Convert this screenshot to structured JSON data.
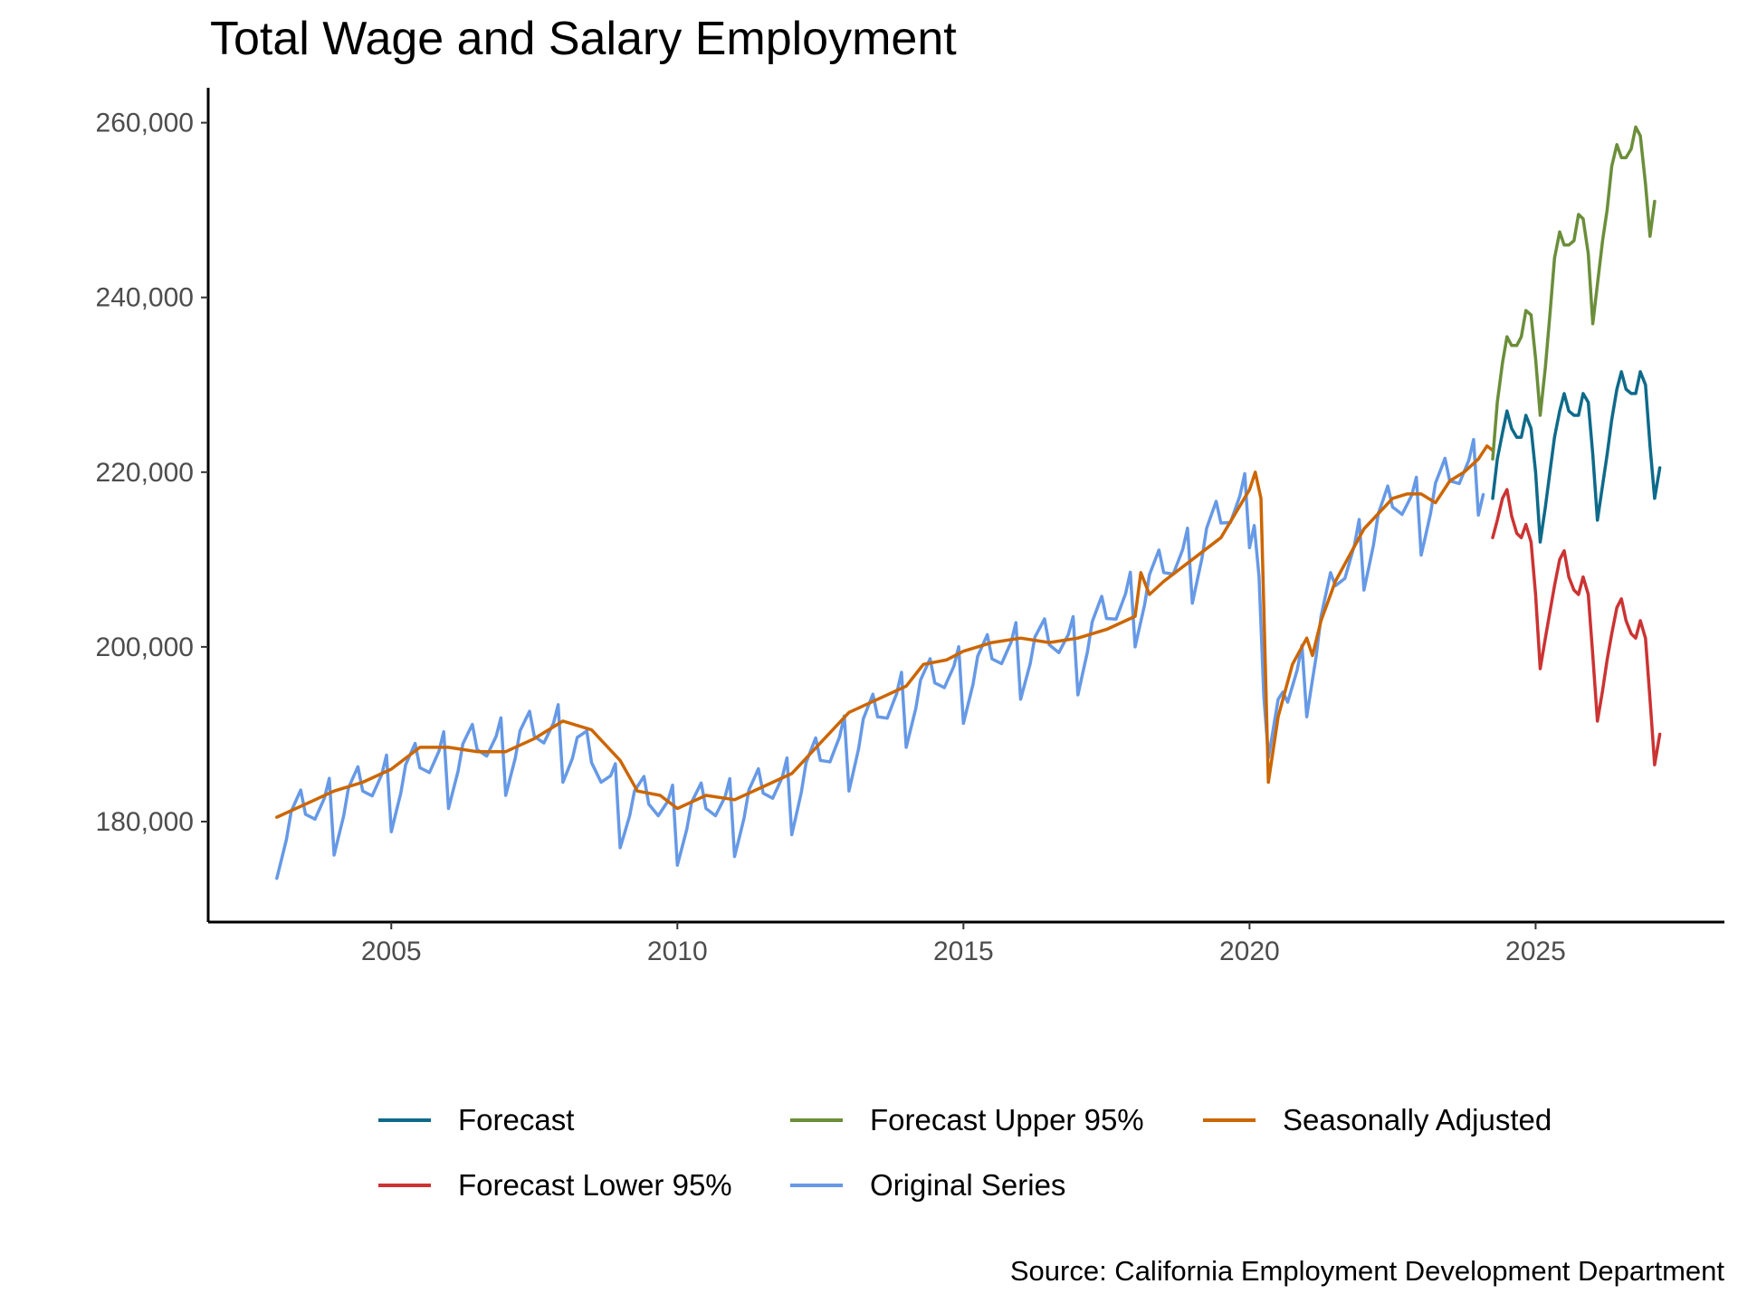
{
  "chart_data": {
    "type": "line",
    "title": "Total Wage and Salary Employment",
    "caption": "Source: California Employment Development Department",
    "xlabel": "",
    "ylabel": "",
    "xlim": [
      2001.8,
      2028.3
    ],
    "ylim": [
      168500,
      264000
    ],
    "x_ticks": [
      2005,
      2010,
      2015,
      2020,
      2025
    ],
    "x_tick_labels": [
      "2005",
      "2010",
      "2015",
      "2020",
      "2025"
    ],
    "y_ticks": [
      180000,
      200000,
      220000,
      240000,
      260000
    ],
    "y_tick_labels": [
      "180,000",
      "200,000",
      "220,000",
      "240,000",
      "260,000"
    ],
    "grid": false,
    "legend_position": "bottom",
    "legend": [
      {
        "name": "Forecast",
        "color": "#0e6a8a"
      },
      {
        "name": "Forecast Upper 95%",
        "color": "#6b8e3a"
      },
      {
        "name": "Seasonally Adjusted",
        "color": "#cc6600"
      },
      {
        "name": "Forecast Lower 95%",
        "color": "#cc3333"
      },
      {
        "name": "Original Series",
        "color": "#6699e6"
      }
    ],
    "series": [
      {
        "name": "Original Series",
        "color": "#6699e6",
        "start": 2003.0,
        "step": 0.083333,
        "seasonal": [
          -7000,
          -5000,
          -3000,
          0,
          1000,
          2000,
          -1000,
          -1500,
          -2000,
          -1000,
          0,
          2000
        ],
        "anchors": [
          [
            2003.0,
            180500
          ],
          [
            2006.0,
            188500
          ],
          [
            2008.0,
            191500
          ],
          [
            2009.0,
            184000
          ],
          [
            2010.0,
            182000
          ],
          [
            2011.0,
            183000
          ],
          [
            2012.0,
            185500
          ],
          [
            2014.0,
            195500
          ],
          [
            2016.0,
            201000
          ],
          [
            2017.0,
            201500
          ],
          [
            2018.0,
            207000
          ],
          [
            2019.0,
            212000
          ],
          [
            2020.1,
            219000
          ],
          [
            2020.3,
            186000
          ],
          [
            2020.5,
            194000
          ],
          [
            2021.0,
            199000
          ],
          [
            2021.5,
            208000
          ],
          [
            2022.0,
            213500
          ],
          [
            2022.5,
            217000
          ],
          [
            2023.0,
            217500
          ],
          [
            2023.5,
            220000
          ],
          [
            2024.1,
            222500
          ]
        ]
      },
      {
        "name": "Seasonally Adjusted",
        "color": "#cc6600",
        "values": [
          [
            2003.0,
            180500
          ],
          [
            2003.5,
            182000
          ],
          [
            2004.0,
            183500
          ],
          [
            2004.5,
            184500
          ],
          [
            2005.0,
            186000
          ],
          [
            2005.5,
            188500
          ],
          [
            2006.0,
            188500
          ],
          [
            2006.5,
            188000
          ],
          [
            2007.0,
            188000
          ],
          [
            2007.5,
            189500
          ],
          [
            2008.0,
            191500
          ],
          [
            2008.5,
            190500
          ],
          [
            2009.0,
            187000
          ],
          [
            2009.3,
            183500
          ],
          [
            2009.7,
            183000
          ],
          [
            2010.0,
            181500
          ],
          [
            2010.5,
            183000
          ],
          [
            2011.0,
            182500
          ],
          [
            2011.5,
            184000
          ],
          [
            2012.0,
            185500
          ],
          [
            2012.5,
            189000
          ],
          [
            2013.0,
            192500
          ],
          [
            2013.5,
            194000
          ],
          [
            2014.0,
            195500
          ],
          [
            2014.3,
            198000
          ],
          [
            2014.7,
            198500
          ],
          [
            2015.0,
            199500
          ],
          [
            2015.5,
            200500
          ],
          [
            2016.0,
            201000
          ],
          [
            2016.5,
            200500
          ],
          [
            2017.0,
            201000
          ],
          [
            2017.5,
            202000
          ],
          [
            2018.0,
            203500
          ],
          [
            2018.1,
            208500
          ],
          [
            2018.25,
            206000
          ],
          [
            2018.5,
            207500
          ],
          [
            2019.0,
            210000
          ],
          [
            2019.5,
            212500
          ],
          [
            2020.0,
            218000
          ],
          [
            2020.1,
            220000
          ],
          [
            2020.2,
            217000
          ],
          [
            2020.33,
            184500
          ],
          [
            2020.5,
            192000
          ],
          [
            2020.75,
            198000
          ],
          [
            2021.0,
            201000
          ],
          [
            2021.1,
            199000
          ],
          [
            2021.25,
            203000
          ],
          [
            2021.5,
            207500
          ],
          [
            2022.0,
            213500
          ],
          [
            2022.5,
            217000
          ],
          [
            2022.75,
            217500
          ],
          [
            2023.0,
            217500
          ],
          [
            2023.25,
            216500
          ],
          [
            2023.5,
            219000
          ],
          [
            2023.75,
            220000
          ],
          [
            2024.0,
            221500
          ],
          [
            2024.15,
            223000
          ],
          [
            2024.25,
            222500
          ]
        ]
      },
      {
        "name": "Forecast",
        "color": "#0e6a8a",
        "values": [
          [
            2024.25,
            217000
          ],
          [
            2024.33,
            221500
          ],
          [
            2024.42,
            224500
          ],
          [
            2024.5,
            227000
          ],
          [
            2024.58,
            225000
          ],
          [
            2024.67,
            224000
          ],
          [
            2024.75,
            224000
          ],
          [
            2024.83,
            226500
          ],
          [
            2024.92,
            225000
          ],
          [
            2025.0,
            220000
          ],
          [
            2025.08,
            212000
          ],
          [
            2025.17,
            216000
          ],
          [
            2025.25,
            220000
          ],
          [
            2025.33,
            224000
          ],
          [
            2025.42,
            227000
          ],
          [
            2025.5,
            229000
          ],
          [
            2025.58,
            227000
          ],
          [
            2025.67,
            226500
          ],
          [
            2025.75,
            226500
          ],
          [
            2025.83,
            229000
          ],
          [
            2025.92,
            228000
          ],
          [
            2026.0,
            222000
          ],
          [
            2026.08,
            214500
          ],
          [
            2026.17,
            218500
          ],
          [
            2026.25,
            222000
          ],
          [
            2026.33,
            226000
          ],
          [
            2026.42,
            229500
          ],
          [
            2026.5,
            231500
          ],
          [
            2026.58,
            229500
          ],
          [
            2026.67,
            229000
          ],
          [
            2026.75,
            229000
          ],
          [
            2026.83,
            231500
          ],
          [
            2026.92,
            230000
          ],
          [
            2027.0,
            223000
          ],
          [
            2027.08,
            217000
          ],
          [
            2027.17,
            220500
          ]
        ]
      },
      {
        "name": "Forecast Upper 95%",
        "color": "#6b8e3a",
        "values": [
          [
            2024.25,
            221500
          ],
          [
            2024.33,
            228000
          ],
          [
            2024.42,
            232500
          ],
          [
            2024.5,
            235500
          ],
          [
            2024.58,
            234500
          ],
          [
            2024.67,
            234500
          ],
          [
            2024.75,
            235500
          ],
          [
            2024.83,
            238500
          ],
          [
            2024.92,
            238000
          ],
          [
            2025.0,
            233000
          ],
          [
            2025.08,
            226500
          ],
          [
            2025.17,
            232000
          ],
          [
            2025.25,
            238000
          ],
          [
            2025.33,
            244500
          ],
          [
            2025.42,
            247500
          ],
          [
            2025.5,
            246000
          ],
          [
            2025.58,
            246000
          ],
          [
            2025.67,
            246500
          ],
          [
            2025.75,
            249500
          ],
          [
            2025.83,
            249000
          ],
          [
            2025.92,
            245000
          ],
          [
            2026.0,
            237000
          ],
          [
            2026.08,
            241500
          ],
          [
            2026.17,
            246500
          ],
          [
            2026.25,
            250000
          ],
          [
            2026.33,
            255000
          ],
          [
            2026.42,
            257500
          ],
          [
            2026.5,
            256000
          ],
          [
            2026.58,
            256000
          ],
          [
            2026.67,
            257000
          ],
          [
            2026.75,
            259500
          ],
          [
            2026.83,
            258500
          ],
          [
            2026.92,
            253000
          ],
          [
            2027.0,
            247000
          ],
          [
            2027.08,
            251000
          ]
        ]
      },
      {
        "name": "Forecast Lower 95%",
        "color": "#cc3333",
        "values": [
          [
            2024.25,
            212500
          ],
          [
            2024.33,
            214500
          ],
          [
            2024.42,
            217000
          ],
          [
            2024.5,
            218000
          ],
          [
            2024.58,
            215000
          ],
          [
            2024.67,
            213000
          ],
          [
            2024.75,
            212500
          ],
          [
            2024.83,
            214000
          ],
          [
            2024.92,
            212000
          ],
          [
            2025.0,
            206000
          ],
          [
            2025.08,
            197500
          ],
          [
            2025.17,
            201000
          ],
          [
            2025.25,
            204000
          ],
          [
            2025.33,
            207000
          ],
          [
            2025.42,
            210000
          ],
          [
            2025.5,
            211000
          ],
          [
            2025.58,
            208000
          ],
          [
            2025.67,
            206500
          ],
          [
            2025.75,
            206000
          ],
          [
            2025.83,
            208000
          ],
          [
            2025.92,
            206000
          ],
          [
            2026.0,
            199000
          ],
          [
            2026.08,
            191500
          ],
          [
            2026.17,
            195000
          ],
          [
            2026.25,
            198500
          ],
          [
            2026.33,
            201500
          ],
          [
            2026.42,
            204500
          ],
          [
            2026.5,
            205500
          ],
          [
            2026.58,
            203000
          ],
          [
            2026.67,
            201500
          ],
          [
            2026.75,
            201000
          ],
          [
            2026.83,
            203000
          ],
          [
            2026.92,
            201000
          ],
          [
            2027.0,
            194000
          ],
          [
            2027.08,
            186500
          ],
          [
            2027.17,
            190000
          ]
        ]
      }
    ]
  }
}
